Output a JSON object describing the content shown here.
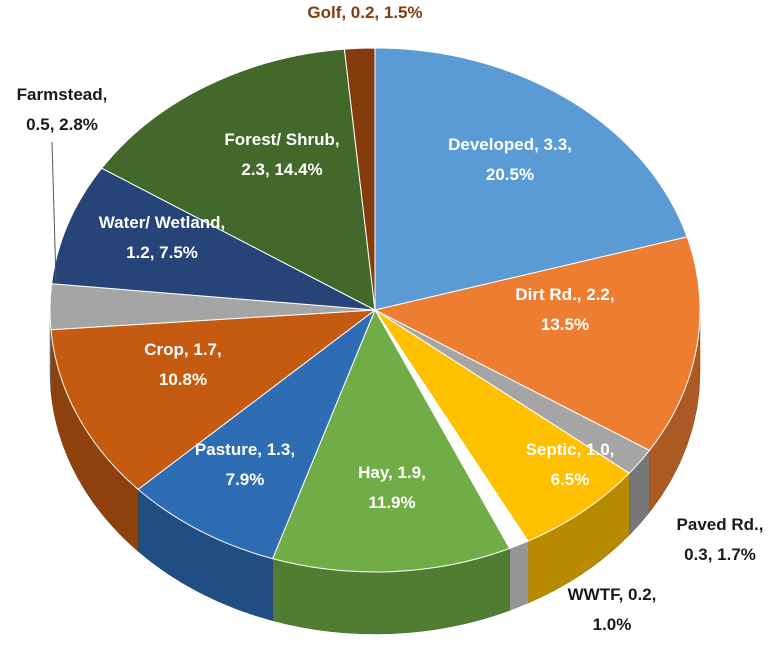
{
  "chart_data": {
    "type": "pie3d",
    "values": [
      20.5,
      13.5,
      1.7,
      6.5,
      1.0,
      11.9,
      7.9,
      10.8,
      2.8,
      7.5,
      14.4,
      1.5
    ],
    "value_labels": [
      "Developed, 3.3,\n20.5%",
      "Dirt Rd., 2.2,\n13.5%",
      "Paved Rd.,\n0.3, 1.7%",
      "Septic, 1.0,\n6.5%",
      "WWTF, 0.2,\n1.0%",
      "Hay, 1.9,\n11.9%",
      "Pasture, 1.3,\n7.9%",
      "Crop, 1.7,\n10.8%",
      "Farmstead,\n0.5, 2.8%",
      "Water/ Wetland,\n1.2, 7.5%",
      "Forest/ Shrub,\n2.3, 14.4%",
      "Golf, 0.2, 1.5%"
    ],
    "colors": [
      "#5b9bd5",
      "#ed7d31",
      "#a5a5a5",
      "#ffc000",
      "#ffffff",
      "#70ad47",
      "#2e6db4",
      "#c55a11",
      "#a5a5a5",
      "#264478",
      "#43682b",
      "#843c0c"
    ],
    "label_colors": [
      "#ffffff",
      "#ffffff",
      "#1a1a1a",
      "#ffffff",
      "#1a1a1a",
      "#ffffff",
      "#ffffff",
      "#ffffff",
      "#1a1a1a",
      "#ffffff",
      "#ffffff",
      "#843c0c"
    ]
  }
}
